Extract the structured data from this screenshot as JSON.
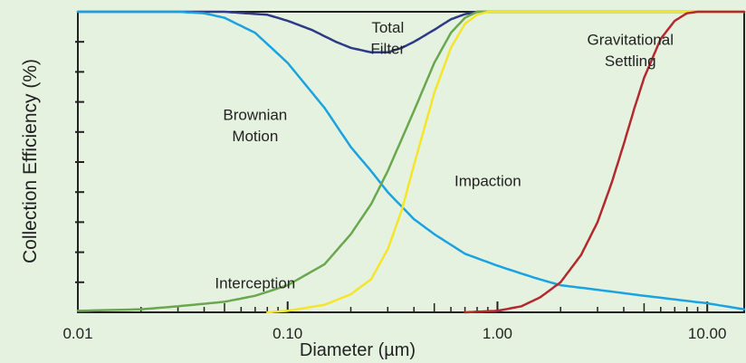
{
  "chart_data": {
    "type": "line",
    "ylabel": "Collection Efficiency (%)",
    "xlabel": "Diameter (µm)",
    "x_scale": "log",
    "xlim": [
      0.01,
      15
    ],
    "ylim": [
      0,
      100
    ],
    "x_ticks": [
      {
        "value": 0.01,
        "label": "0.01"
      },
      {
        "value": 0.1,
        "label": "0.10"
      },
      {
        "value": 1,
        "label": "1.00"
      },
      {
        "value": 10,
        "label": "10.00"
      }
    ],
    "y_ticks_labeled": false,
    "grid": false,
    "series": [
      {
        "name": "Total Filter",
        "color": "#2e3a86",
        "x": [
          0.01,
          0.03,
          0.05,
          0.08,
          0.1,
          0.13,
          0.17,
          0.2,
          0.25,
          0.3,
          0.35,
          0.4,
          0.5,
          0.6,
          0.7,
          0.8,
          0.9,
          1.0,
          15
        ],
        "y": [
          100,
          100,
          100,
          99,
          97,
          94,
          90,
          88,
          86.5,
          86.5,
          88,
          90,
          94,
          97.5,
          99.2,
          100,
          100,
          100,
          100
        ]
      },
      {
        "name": "Brownian Motion",
        "color": "#1aa3e0",
        "x": [
          0.01,
          0.03,
          0.04,
          0.05,
          0.07,
          0.1,
          0.15,
          0.2,
          0.25,
          0.3,
          0.4,
          0.5,
          0.7,
          1.0,
          1.5,
          2.0,
          3.0,
          5.0,
          10.0,
          15
        ],
        "y": [
          100,
          100,
          99.5,
          98,
          93,
          83,
          68,
          55,
          47,
          40,
          31,
          26,
          19.5,
          15.5,
          11.5,
          9,
          7.5,
          5.5,
          3,
          1
        ]
      },
      {
        "name": "Interception",
        "color": "#6aa84f",
        "x": [
          0.01,
          0.02,
          0.03,
          0.05,
          0.07,
          0.1,
          0.15,
          0.2,
          0.25,
          0.3,
          0.4,
          0.5,
          0.6,
          0.7,
          0.8,
          0.9,
          1.0,
          15
        ],
        "y": [
          0.5,
          1,
          2,
          3.5,
          5.5,
          9,
          16,
          26,
          36,
          47,
          67,
          83,
          93,
          98,
          100,
          100,
          100,
          100
        ]
      },
      {
        "name": "Impaction",
        "color": "#f5e52a",
        "x": [
          0.08,
          0.1,
          0.15,
          0.2,
          0.25,
          0.3,
          0.35,
          0.4,
          0.5,
          0.6,
          0.7,
          0.8,
          0.9,
          1.0,
          15
        ],
        "y": [
          0,
          0.5,
          2.5,
          6,
          11,
          21,
          34,
          49,
          73,
          88,
          96,
          99,
          100,
          100,
          100
        ]
      },
      {
        "name": "Gravitational Settling",
        "color": "#b22a2e",
        "x": [
          0.7,
          1.0,
          1.3,
          1.6,
          2.0,
          2.5,
          3.0,
          3.5,
          4.0,
          4.5,
          5.0,
          6.0,
          7.0,
          8.0,
          9.0,
          15
        ],
        "y": [
          0,
          0.5,
          2,
          5,
          10,
          19,
          30,
          43,
          56,
          68,
          78,
          91,
          97,
          99.5,
          100,
          100
        ]
      }
    ],
    "annotations": [
      {
        "text": "Total",
        "x": 0.3,
        "y": 93
      },
      {
        "text": "Filter",
        "x": 0.3,
        "y": 86
      },
      {
        "text": "Brownian",
        "x": 0.07,
        "y": 64
      },
      {
        "text": "Motion",
        "x": 0.07,
        "y": 57
      },
      {
        "text": "Impaction",
        "x": 0.9,
        "y": 42
      },
      {
        "text": "Gravitational",
        "x": 4.3,
        "y": 89
      },
      {
        "text": "Settling",
        "x": 4.3,
        "y": 82
      },
      {
        "text": "Interception",
        "x": 0.07,
        "y": 8
      }
    ]
  }
}
